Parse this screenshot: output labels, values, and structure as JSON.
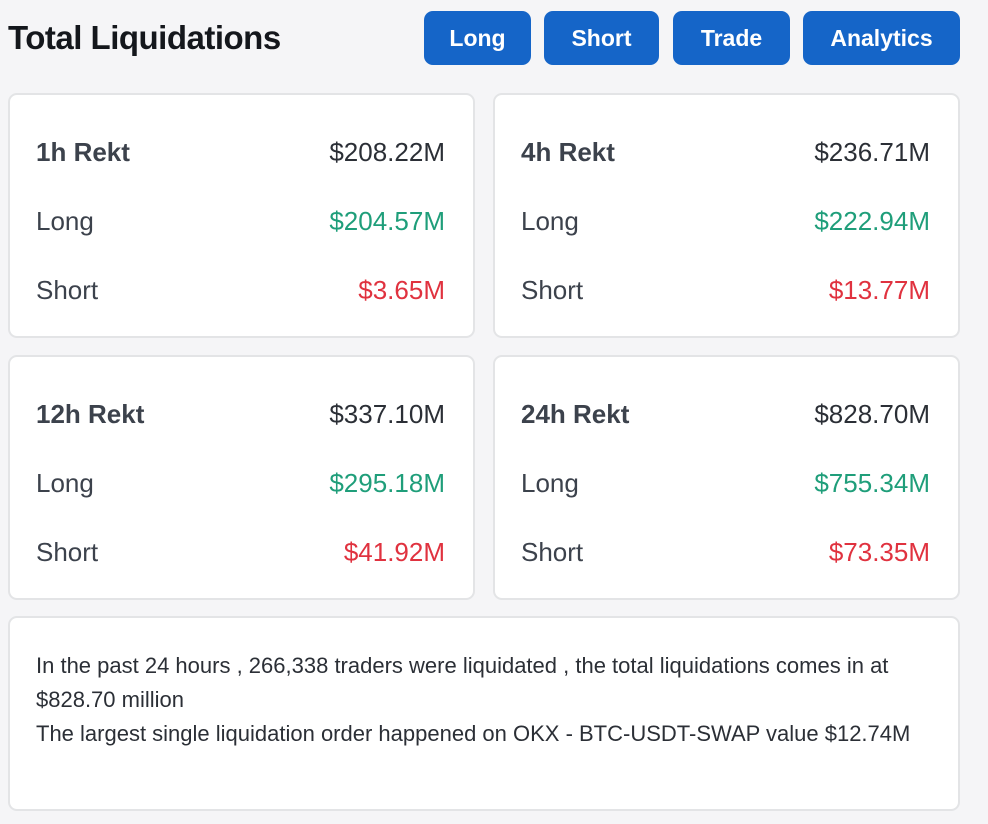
{
  "header": {
    "title": "Total Liquidations",
    "buttons": {
      "long": "Long",
      "short": "Short",
      "trade": "Trade",
      "analytics": "Analytics"
    }
  },
  "cards": {
    "h1": {
      "label": "1h Rekt",
      "total": "$208.22M",
      "long_label": "Long",
      "long": "$204.57M",
      "short_label": "Short",
      "short": "$3.65M"
    },
    "h4": {
      "label": "4h Rekt",
      "total": "$236.71M",
      "long_label": "Long",
      "long": "$222.94M",
      "short_label": "Short",
      "short": "$13.77M"
    },
    "h12": {
      "label": "12h Rekt",
      "total": "$337.10M",
      "long_label": "Long",
      "long": "$295.18M",
      "short_label": "Short",
      "short": "$41.92M"
    },
    "h24": {
      "label": "24h Rekt",
      "total": "$828.70M",
      "long_label": "Long",
      "long": "$755.34M",
      "short_label": "Short",
      "short": "$73.35M"
    }
  },
  "summary": {
    "line1": "In the past 24 hours , 266,338 traders were liquidated , the total liquidations comes in at $828.70 million",
    "line2": "The largest single liquidation order happened on OKX - BTC-USDT-SWAP value $12.74M"
  },
  "colors": {
    "accent": "#1565c8",
    "long": "#1f9e7a",
    "short": "#e0323f"
  }
}
